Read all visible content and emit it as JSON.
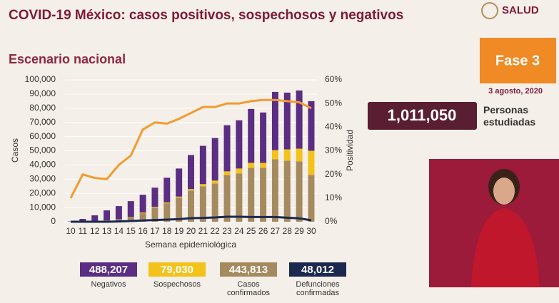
{
  "header": {
    "title": "COVID-19 México: casos positivos, sospechosos y negativos",
    "logo": "SALUD"
  },
  "subtitle": "Escenario nacional",
  "phase": "Fase 3",
  "date": "3 agosto, 2020",
  "studied": {
    "value": "1,011,050",
    "label": "Personas estudiadas"
  },
  "chart_data": {
    "type": "bar",
    "x_label": "Semana epidemiológica",
    "y_label": "Casos",
    "y2_label": "Positividad",
    "categories": [
      10,
      11,
      12,
      13,
      14,
      15,
      16,
      17,
      18,
      19,
      20,
      21,
      22,
      23,
      24,
      25,
      26,
      27,
      28,
      29,
      30
    ],
    "ylim": [
      0,
      100000
    ],
    "yticks": [
      0,
      {
        "value": 10000,
        "label": "10,000"
      },
      {
        "value": 20000,
        "label": "20,000"
      },
      {
        "value": 30000,
        "label": "30,000"
      },
      {
        "value": 40000,
        "label": "40,000"
      },
      {
        "value": 50000,
        "label": "50,000"
      },
      {
        "value": 60000,
        "label": "60,000"
      },
      {
        "value": 70000,
        "label": "70,000"
      },
      {
        "value": 80000,
        "label": "80,000"
      },
      {
        "value": 90000,
        "label": "90,000"
      },
      {
        "value": 100000,
        "label": "100,000"
      }
    ],
    "y2lim": [
      0,
      60
    ],
    "y2ticks": [
      {
        "value": 0,
        "label": "0%"
      },
      {
        "value": 10,
        "label": "10%"
      },
      {
        "value": 20,
        "label": "20%"
      },
      {
        "value": 30,
        "label": "30%"
      },
      {
        "value": 40,
        "label": "40%"
      },
      {
        "value": 50,
        "label": "50%"
      },
      {
        "value": 60,
        "label": "60%"
      }
    ],
    "grid": true,
    "series": [
      {
        "name": "Negativos",
        "type": "bar",
        "color": "#5b2d83",
        "total": 488207,
        "total_label": "488,207",
        "values": [
          200,
          1900,
          4200,
          7100,
          9300,
          11200,
          12500,
          13500,
          17400,
          19800,
          24000,
          27000,
          30000,
          32500,
          34000,
          38000,
          35500,
          41000,
          40000,
          41000,
          35000
        ]
      },
      {
        "name": "Sospechosos",
        "type": "bar",
        "color": "#f3c21b",
        "total": 79030,
        "total_label": "79,030",
        "values": [
          0,
          0,
          0,
          100,
          200,
          300,
          500,
          500,
          600,
          700,
          1000,
          1500,
          2000,
          2500,
          3500,
          3500,
          3500,
          6500,
          8000,
          9000,
          17000
        ]
      },
      {
        "name": "Casos confirmados",
        "type": "bar",
        "color": "#a68a5f",
        "total": 443813,
        "total_label": "443,813",
        "values": [
          20,
          100,
          300,
          800,
          1500,
          3000,
          6000,
          10000,
          13000,
          17000,
          22000,
          25000,
          27000,
          33000,
          34000,
          38000,
          38000,
          44000,
          43000,
          42500,
          33000
        ]
      },
      {
        "name": "Defunciones confirmadas",
        "type": "line",
        "color": "#1b2850",
        "total": 48012,
        "total_label": "48,012",
        "values": [
          0,
          0,
          0,
          0,
          200,
          500,
          900,
          1200,
          1500,
          1800,
          2500,
          2700,
          3000,
          3500,
          3500,
          3300,
          3300,
          3300,
          2800,
          2400,
          1000
        ]
      },
      {
        "type": "line",
        "axis": "y2",
        "color": "#f29b2e",
        "values": [
          10,
          20,
          18.5,
          18,
          24,
          28,
          39,
          42,
          41.5,
          43.5,
          46,
          48.5,
          48.5,
          50,
          50,
          51,
          51.5,
          51.5,
          51,
          50.5,
          48
        ]
      }
    ]
  }
}
